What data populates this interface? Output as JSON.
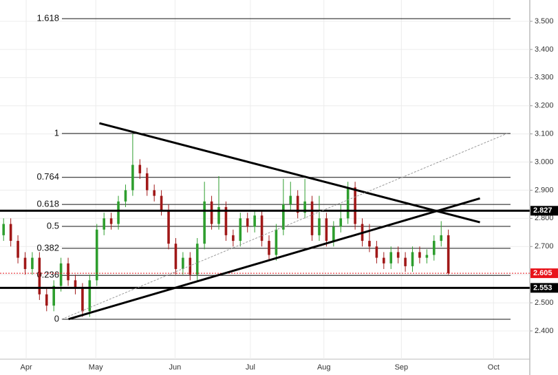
{
  "chart_data": {
    "type": "candlestick",
    "x": [
      0,
      2,
      4,
      6,
      8,
      10,
      12,
      14,
      16,
      18,
      20,
      22,
      24,
      26,
      28,
      30,
      32,
      34,
      36,
      38,
      40,
      42,
      44,
      46,
      48,
      50,
      52,
      54,
      56,
      58,
      60,
      62,
      64,
      66,
      68,
      70,
      72,
      74,
      76,
      78,
      80,
      82,
      84,
      86,
      88,
      90,
      92,
      94,
      96,
      98,
      100,
      102,
      104,
      106,
      108,
      110,
      112,
      114,
      116,
      118,
      120,
      122,
      124
    ],
    "open": [
      2.74,
      2.78,
      2.72,
      2.66,
      2.62,
      2.66,
      2.53,
      2.49,
      2.56,
      2.64,
      2.58,
      2.55,
      2.47,
      2.58,
      2.76,
      2.8,
      2.78,
      2.86,
      2.9,
      2.99,
      2.96,
      2.9,
      2.88,
      2.83,
      2.71,
      2.62,
      2.66,
      2.6,
      2.71,
      2.86,
      2.78,
      2.84,
      2.74,
      2.72,
      2.8,
      2.77,
      2.81,
      2.72,
      2.67,
      2.76,
      2.85,
      2.88,
      2.82,
      2.86,
      2.74,
      2.8,
      2.72,
      2.77,
      2.8,
      2.91,
      2.78,
      2.72,
      2.7,
      2.66,
      2.64,
      2.68,
      2.66,
      2.63,
      2.68,
      2.66,
      2.67,
      2.72,
      2.74
    ],
    "high": [
      2.8,
      2.8,
      2.74,
      2.68,
      2.68,
      2.68,
      2.55,
      2.58,
      2.66,
      2.66,
      2.6,
      2.57,
      2.6,
      2.78,
      2.82,
      2.82,
      2.88,
      2.92,
      3.1,
      3.01,
      2.98,
      2.92,
      2.9,
      2.85,
      2.73,
      2.68,
      2.68,
      2.73,
      2.93,
      2.88,
      2.95,
      2.86,
      2.76,
      2.82,
      2.82,
      2.83,
      2.83,
      2.74,
      2.78,
      2.94,
      2.93,
      2.9,
      2.94,
      2.88,
      2.88,
      2.82,
      2.79,
      2.85,
      2.93,
      2.93,
      2.8,
      2.78,
      2.72,
      2.68,
      2.7,
      2.7,
      2.68,
      2.7,
      2.7,
      2.69,
      2.74,
      2.79,
      2.76
    ],
    "low": [
      2.72,
      2.7,
      2.64,
      2.6,
      2.6,
      2.51,
      2.47,
      2.47,
      2.54,
      2.56,
      2.53,
      2.45,
      2.45,
      2.56,
      2.74,
      2.76,
      2.76,
      2.84,
      2.88,
      2.94,
      2.88,
      2.86,
      2.81,
      2.69,
      2.6,
      2.6,
      2.58,
      2.58,
      2.69,
      2.76,
      2.76,
      2.72,
      2.7,
      2.7,
      2.75,
      2.75,
      2.7,
      2.65,
      2.65,
      2.74,
      2.83,
      2.8,
      2.8,
      2.72,
      2.72,
      2.7,
      2.7,
      2.75,
      2.78,
      2.76,
      2.7,
      2.68,
      2.64,
      2.62,
      2.62,
      2.64,
      2.61,
      2.61,
      2.64,
      2.64,
      2.65,
      2.7,
      2.6
    ],
    "close": [
      2.78,
      2.72,
      2.66,
      2.62,
      2.66,
      2.53,
      2.49,
      2.56,
      2.64,
      2.58,
      2.55,
      2.47,
      2.58,
      2.76,
      2.8,
      2.78,
      2.86,
      2.9,
      2.99,
      2.96,
      2.9,
      2.88,
      2.83,
      2.71,
      2.62,
      2.66,
      2.6,
      2.71,
      2.86,
      2.78,
      2.84,
      2.74,
      2.72,
      2.8,
      2.77,
      2.81,
      2.72,
      2.67,
      2.76,
      2.85,
      2.88,
      2.82,
      2.86,
      2.74,
      2.8,
      2.72,
      2.77,
      2.8,
      2.91,
      2.78,
      2.72,
      2.7,
      2.66,
      2.64,
      2.68,
      2.66,
      2.63,
      2.68,
      2.66,
      2.67,
      2.72,
      2.74,
      2.605
    ],
    "up_color": "#2e9e2e",
    "down_color": "#a01818",
    "xlim": [
      -1,
      146.7
    ],
    "xticks": [
      {
        "value": 6.3,
        "label": "Apr"
      },
      {
        "value": 25.7,
        "label": "May"
      },
      {
        "value": 47.8,
        "label": "Jun"
      },
      {
        "value": 68.8,
        "label": "Jul"
      },
      {
        "value": 89.3,
        "label": "Aug"
      },
      {
        "value": 110.9,
        "label": "Sep"
      },
      {
        "value": 136.6,
        "label": "Oct"
      }
    ],
    "ylim": [
      2.3156,
      3.5757
    ],
    "yticks": [
      {
        "value": 2.4,
        "label": "2.400"
      },
      {
        "value": 2.5,
        "label": "2.500"
      },
      {
        "value": 2.6,
        "label": "2.600"
      },
      {
        "value": 2.7,
        "label": "2.700"
      },
      {
        "value": 2.8,
        "label": "2.800"
      },
      {
        "value": 2.9,
        "label": "2.900"
      },
      {
        "value": 3.0,
        "label": "3.000"
      },
      {
        "value": 3.1,
        "label": "3.100"
      },
      {
        "value": 3.2,
        "label": "3.200"
      },
      {
        "value": 3.3,
        "label": "3.300"
      },
      {
        "value": 3.4,
        "label": "3.400"
      },
      {
        "value": 3.5,
        "label": "3.500"
      }
    ],
    "grid": true,
    "fib": {
      "low": 2.4415,
      "high": 3.1015,
      "ratios": [
        0,
        0.236,
        0.382,
        0.5,
        0.618,
        0.764,
        1,
        1.618
      ]
    },
    "trendlines": [
      {
        "x": [
          26.7,
          132.8
        ],
        "y": [
          3.138,
          2.786
        ],
        "style": "solid",
        "width": 3
      },
      {
        "x": [
          18.1,
          132.8
        ],
        "y": [
          2.442,
          2.871
        ],
        "style": "solid",
        "width": 3
      },
      {
        "x": [
          16.2,
          140.4
        ],
        "y": [
          2.4415,
          3.1015
        ],
        "style": "dashed",
        "width": 1
      }
    ],
    "levels": [
      {
        "value": 2.827,
        "color": "#000000"
      },
      {
        "value": 2.553,
        "color": "#000000"
      }
    ],
    "last_price": {
      "value": 2.605,
      "color": "#e8141b"
    }
  }
}
